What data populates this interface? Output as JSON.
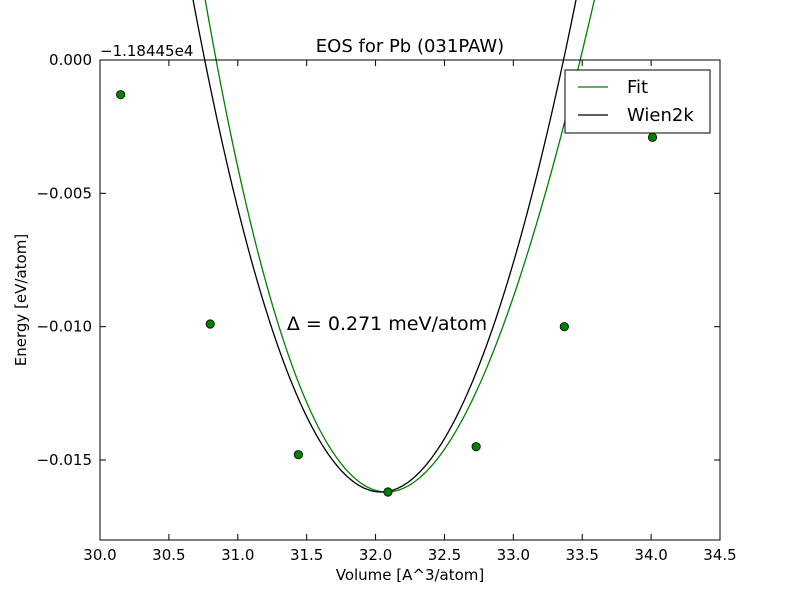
{
  "chart_data": {
    "type": "line",
    "title": "EOS for Pb (031PAW)",
    "xlabel": "Volume [A^3/atom]",
    "ylabel": "Energy [eV/atom]",
    "y_offset_label": "−1.18445e4",
    "xlim": [
      30.0,
      34.5
    ],
    "ylim": [
      -0.018,
      0.0
    ],
    "x_ticks": [
      30.0,
      30.5,
      31.0,
      31.5,
      32.0,
      32.5,
      33.0,
      33.5,
      34.0,
      34.5
    ],
    "x_tick_labels": [
      "30.0",
      "30.5",
      "31.0",
      "31.5",
      "32.0",
      "32.5",
      "33.0",
      "33.5",
      "34.0",
      "34.5"
    ],
    "y_ticks": [
      0.0,
      -0.005,
      -0.01,
      -0.015
    ],
    "y_tick_labels": [
      "0.000",
      "−0.005",
      "−0.010",
      "−0.015"
    ],
    "grid": false,
    "legend_position": "top-right",
    "annotation": "Δ = 0.271 meV/atom",
    "series": [
      {
        "name": "Fit",
        "style": "line",
        "color": "#008000",
        "curve": {
          "v0": 32.08,
          "e0": -0.0162,
          "c2": 0.00947,
          "c3": -0.0009
        },
        "x_range": [
          30.15,
          34.02
        ]
      },
      {
        "name": "Wien2k",
        "style": "line",
        "color": "#000000",
        "curve": {
          "v0": 32.04,
          "e0": -0.0162,
          "c2": 0.00957,
          "c3": -0.00025
        },
        "x_range": [
          30.15,
          34.02
        ]
      },
      {
        "name": "",
        "style": "markers",
        "color": "#008000",
        "x": [
          30.15,
          30.8,
          31.44,
          32.09,
          32.73,
          33.37,
          34.01
        ],
        "y": [
          -0.0013,
          -0.0099,
          -0.0148,
          -0.0162,
          -0.0145,
          -0.01,
          -0.0029
        ]
      }
    ]
  }
}
